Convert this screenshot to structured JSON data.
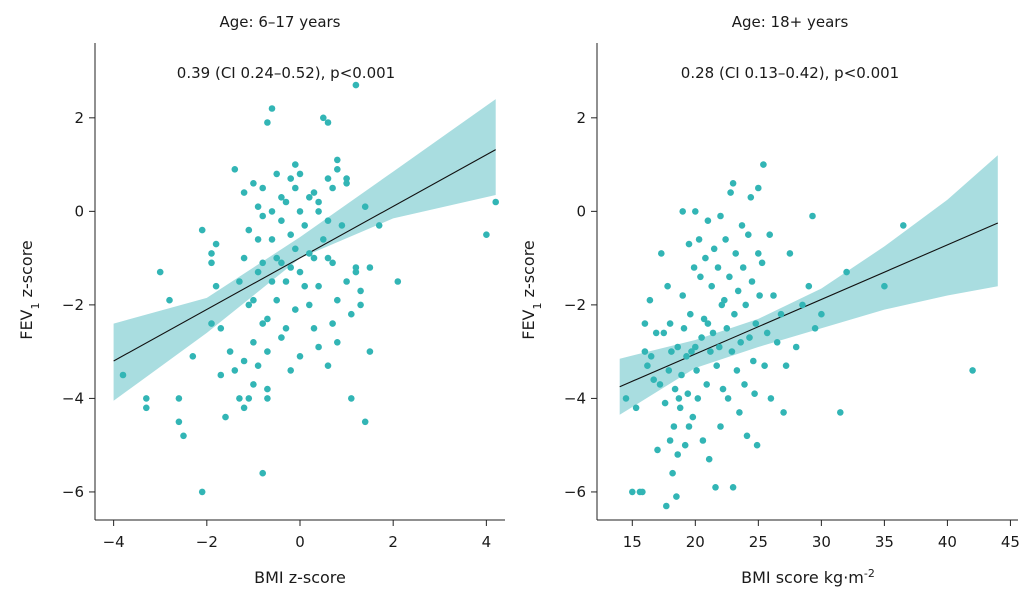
{
  "chart_data": [
    {
      "type": "scatter",
      "title": "Age: 6–17 years",
      "annotation": "0.39 (CI 0.24–0.52), p<0.001",
      "xlabel": "BMI z-score",
      "ylabel_main": "FEV",
      "ylabel_sub": "1",
      "ylabel_rest": " z-score",
      "xlim": [
        -4.4,
        4.4
      ],
      "ylim": [
        -6.6,
        3.6
      ],
      "xticks": [
        -4,
        -2,
        0,
        2,
        4
      ],
      "yticks": [
        -6,
        -4,
        -2,
        0,
        2
      ],
      "fit": {
        "x": [
          -4.0,
          4.2
        ],
        "y": [
          -3.2,
          1.32
        ]
      },
      "band": {
        "x": [
          -4.0,
          -2.0,
          0.0,
          2.0,
          4.2
        ],
        "lower": [
          -4.05,
          -2.6,
          -1.0,
          -0.15,
          0.35
        ],
        "upper": [
          -2.4,
          -1.85,
          -0.55,
          0.85,
          2.4
        ]
      },
      "points": [
        [
          -3.8,
          -3.5
        ],
        [
          -3.3,
          -4.0
        ],
        [
          -3.3,
          -4.2
        ],
        [
          -3.0,
          -1.3
        ],
        [
          -2.8,
          -1.9
        ],
        [
          -2.6,
          -4.0
        ],
        [
          -2.6,
          -4.5
        ],
        [
          -2.5,
          -4.8
        ],
        [
          -2.3,
          -3.1
        ],
        [
          -2.1,
          -6.0
        ],
        [
          -2.1,
          -0.4
        ],
        [
          -1.9,
          -0.9
        ],
        [
          -1.9,
          -1.1
        ],
        [
          -1.9,
          -2.4
        ],
        [
          -1.8,
          -0.7
        ],
        [
          -1.8,
          -1.6
        ],
        [
          -1.7,
          -3.5
        ],
        [
          -1.7,
          -2.5
        ],
        [
          -1.6,
          -4.4
        ],
        [
          -1.5,
          -3.0
        ],
        [
          -1.4,
          -3.4
        ],
        [
          -1.4,
          0.9
        ],
        [
          -1.3,
          -4.0
        ],
        [
          -1.3,
          -1.5
        ],
        [
          -1.2,
          -4.2
        ],
        [
          -1.2,
          -3.2
        ],
        [
          -1.2,
          -1.0
        ],
        [
          -1.2,
          0.4
        ],
        [
          -1.1,
          -4.0
        ],
        [
          -1.1,
          -2.0
        ],
        [
          -1.1,
          -0.4
        ],
        [
          -1.0,
          0.6
        ],
        [
          -1.0,
          -1.9
        ],
        [
          -1.0,
          -2.8
        ],
        [
          -1.0,
          -3.7
        ],
        [
          -0.9,
          -3.3
        ],
        [
          -0.9,
          -1.3
        ],
        [
          -0.9,
          -0.6
        ],
        [
          -0.9,
          0.1
        ],
        [
          -0.8,
          -5.6
        ],
        [
          -0.8,
          -2.4
        ],
        [
          -0.8,
          -1.1
        ],
        [
          -0.8,
          -0.1
        ],
        [
          -0.8,
          0.5
        ],
        [
          -0.7,
          1.9
        ],
        [
          -0.7,
          -2.3
        ],
        [
          -0.7,
          -3.0
        ],
        [
          -0.7,
          -3.8
        ],
        [
          -0.7,
          -4.0
        ],
        [
          -0.6,
          2.2
        ],
        [
          -0.6,
          -0.6
        ],
        [
          -0.6,
          -1.5
        ],
        [
          -0.6,
          0.0
        ],
        [
          -0.5,
          -1.0
        ],
        [
          -0.5,
          -1.9
        ],
        [
          -0.5,
          0.8
        ],
        [
          -0.4,
          -0.2
        ],
        [
          -0.4,
          -2.7
        ],
        [
          -0.4,
          -1.1
        ],
        [
          -0.4,
          0.3
        ],
        [
          -0.3,
          0.2
        ],
        [
          -0.3,
          -1.5
        ],
        [
          -0.3,
          -2.5
        ],
        [
          -0.2,
          -0.5
        ],
        [
          -0.2,
          0.7
        ],
        [
          -0.2,
          -1.2
        ],
        [
          -0.2,
          -3.4
        ],
        [
          -0.1,
          -0.8
        ],
        [
          -0.1,
          1.0
        ],
        [
          -0.1,
          0.5
        ],
        [
          -0.1,
          -2.1
        ],
        [
          0.0,
          -1.3
        ],
        [
          0.0,
          0.0
        ],
        [
          0.0,
          -3.1
        ],
        [
          0.0,
          0.8
        ],
        [
          0.1,
          -1.6
        ],
        [
          0.1,
          -0.3
        ],
        [
          0.2,
          -0.9
        ],
        [
          0.2,
          -2.0
        ],
        [
          0.2,
          0.3
        ],
        [
          0.3,
          -1.0
        ],
        [
          0.3,
          -2.5
        ],
        [
          0.3,
          0.4
        ],
        [
          0.4,
          0.0
        ],
        [
          0.4,
          -1.6
        ],
        [
          0.4,
          -2.9
        ],
        [
          0.4,
          0.2
        ],
        [
          0.5,
          -0.6
        ],
        [
          0.5,
          2.0
        ],
        [
          0.6,
          -1.0
        ],
        [
          0.6,
          0.7
        ],
        [
          0.6,
          1.9
        ],
        [
          0.6,
          -0.2
        ],
        [
          0.6,
          -3.3
        ],
        [
          0.7,
          -1.1
        ],
        [
          0.7,
          -2.4
        ],
        [
          0.7,
          0.5
        ],
        [
          0.8,
          1.1
        ],
        [
          0.8,
          -1.9
        ],
        [
          0.8,
          0.9
        ],
        [
          0.8,
          -2.8
        ],
        [
          0.9,
          -0.3
        ],
        [
          1.0,
          0.6
        ],
        [
          1.0,
          -1.5
        ],
        [
          1.0,
          0.7
        ],
        [
          1.1,
          -2.2
        ],
        [
          1.1,
          -4.0
        ],
        [
          1.2,
          2.7
        ],
        [
          1.2,
          -1.2
        ],
        [
          1.3,
          -1.7
        ],
        [
          1.3,
          -2.0
        ],
        [
          1.4,
          0.1
        ],
        [
          1.4,
          -4.5
        ],
        [
          1.5,
          -3.0
        ],
        [
          1.5,
          -1.2
        ],
        [
          1.7,
          -0.3
        ],
        [
          2.1,
          -1.5
        ],
        [
          4.0,
          -0.5
        ],
        [
          4.2,
          0.2
        ],
        [
          1.2,
          -1.3
        ]
      ]
    },
    {
      "type": "scatter",
      "title": "Age: 18+ years",
      "annotation": "0.28 (CI 0.13–0.42), p<0.001",
      "xlabel_main": "BMI score kg·m",
      "xlabel_sup": "-2",
      "ylabel_main": "FEV",
      "ylabel_sub": "1",
      "ylabel_rest": " z-score",
      "xlim": [
        12.2,
        45.6
      ],
      "ylim": [
        -6.6,
        3.6
      ],
      "xticks": [
        15,
        20,
        25,
        30,
        35,
        40,
        45
      ],
      "yticks": [
        -6,
        -4,
        -2,
        0,
        2
      ],
      "fit": {
        "x": [
          14.0,
          44.0
        ],
        "y": [
          -3.75,
          -0.25
        ]
      },
      "band": {
        "x": [
          14.0,
          20.0,
          25.0,
          30.0,
          35.0,
          40.0,
          44.0
        ],
        "lower": [
          -4.35,
          -3.35,
          -2.9,
          -2.5,
          -2.1,
          -1.8,
          -1.6
        ],
        "upper": [
          -3.15,
          -2.75,
          -2.3,
          -1.65,
          -0.75,
          0.25,
          1.2
        ]
      },
      "points": [
        [
          14.5,
          -4.0
        ],
        [
          15.0,
          -6.0
        ],
        [
          15.3,
          -4.2
        ],
        [
          15.6,
          -6.0
        ],
        [
          15.8,
          -6.0
        ],
        [
          16.0,
          -2.4
        ],
        [
          16.0,
          -3.0
        ],
        [
          16.2,
          -3.3
        ],
        [
          16.4,
          -1.9
        ],
        [
          16.5,
          -3.1
        ],
        [
          16.7,
          -3.6
        ],
        [
          16.9,
          -2.6
        ],
        [
          17.0,
          -5.1
        ],
        [
          17.2,
          -3.7
        ],
        [
          17.3,
          -0.9
        ],
        [
          17.5,
          -2.6
        ],
        [
          17.6,
          -4.1
        ],
        [
          17.7,
          -6.3
        ],
        [
          17.8,
          -1.6
        ],
        [
          17.9,
          -3.4
        ],
        [
          18.0,
          -2.4
        ],
        [
          18.0,
          -4.9
        ],
        [
          18.1,
          -3.0
        ],
        [
          18.2,
          -5.6
        ],
        [
          18.3,
          -4.6
        ],
        [
          18.4,
          -3.8
        ],
        [
          18.5,
          -6.1
        ],
        [
          18.6,
          -2.9
        ],
        [
          18.6,
          -5.2
        ],
        [
          18.7,
          -4.0
        ],
        [
          18.8,
          -4.2
        ],
        [
          18.9,
          -3.5
        ],
        [
          19.0,
          0.0
        ],
        [
          19.0,
          -1.8
        ],
        [
          19.1,
          -2.5
        ],
        [
          19.2,
          -5.0
        ],
        [
          19.3,
          -3.1
        ],
        [
          19.4,
          -3.9
        ],
        [
          19.5,
          -0.7
        ],
        [
          19.5,
          -4.6
        ],
        [
          19.6,
          -2.2
        ],
        [
          19.7,
          -3.0
        ],
        [
          19.8,
          -4.4
        ],
        [
          19.9,
          -1.2
        ],
        [
          20.0,
          0.0
        ],
        [
          20.0,
          -2.9
        ],
        [
          20.1,
          -3.4
        ],
        [
          20.2,
          -4.0
        ],
        [
          20.3,
          -0.6
        ],
        [
          20.4,
          -1.4
        ],
        [
          20.5,
          -2.7
        ],
        [
          20.6,
          -4.9
        ],
        [
          20.7,
          -2.3
        ],
        [
          20.8,
          -1.0
        ],
        [
          20.9,
          -3.7
        ],
        [
          21.0,
          -2.4
        ],
        [
          21.0,
          -0.2
        ],
        [
          21.1,
          -5.3
        ],
        [
          21.2,
          -3.0
        ],
        [
          21.3,
          -1.6
        ],
        [
          21.4,
          -2.6
        ],
        [
          21.5,
          -0.8
        ],
        [
          21.6,
          -5.9
        ],
        [
          21.7,
          -3.3
        ],
        [
          21.8,
          -1.2
        ],
        [
          21.9,
          -2.9
        ],
        [
          22.0,
          -0.1
        ],
        [
          22.0,
          -4.6
        ],
        [
          22.1,
          -2.0
        ],
        [
          22.2,
          -3.8
        ],
        [
          22.3,
          -1.9
        ],
        [
          22.4,
          -0.6
        ],
        [
          22.5,
          -2.5
        ],
        [
          22.6,
          -4.0
        ],
        [
          22.7,
          -1.4
        ],
        [
          22.8,
          0.4
        ],
        [
          22.9,
          -3.0
        ],
        [
          23.0,
          0.6
        ],
        [
          23.0,
          -5.9
        ],
        [
          23.1,
          -2.2
        ],
        [
          23.2,
          -0.9
        ],
        [
          23.3,
          -3.4
        ],
        [
          23.4,
          -1.7
        ],
        [
          23.5,
          -4.3
        ],
        [
          23.6,
          -2.8
        ],
        [
          23.7,
          -0.3
        ],
        [
          23.8,
          -1.2
        ],
        [
          23.9,
          -3.7
        ],
        [
          24.0,
          -2.0
        ],
        [
          24.1,
          -4.8
        ],
        [
          24.2,
          -0.5
        ],
        [
          24.3,
          -2.7
        ],
        [
          24.4,
          0.3
        ],
        [
          24.5,
          -1.5
        ],
        [
          24.6,
          -3.2
        ],
        [
          24.7,
          -3.9
        ],
        [
          24.8,
          -2.4
        ],
        [
          24.9,
          -5.0
        ],
        [
          25.0,
          -0.9
        ],
        [
          25.0,
          0.5
        ],
        [
          25.1,
          -1.8
        ],
        [
          25.3,
          -1.1
        ],
        [
          25.4,
          1.0
        ],
        [
          25.5,
          -3.3
        ],
        [
          25.7,
          -2.6
        ],
        [
          25.9,
          -0.5
        ],
        [
          26.0,
          -4.0
        ],
        [
          26.2,
          -1.8
        ],
        [
          26.5,
          -2.8
        ],
        [
          26.8,
          -2.2
        ],
        [
          27.0,
          -4.3
        ],
        [
          27.2,
          -3.3
        ],
        [
          27.5,
          -0.9
        ],
        [
          28.0,
          -2.9
        ],
        [
          28.5,
          -2.0
        ],
        [
          29.0,
          -1.6
        ],
        [
          29.3,
          -0.1
        ],
        [
          29.5,
          -2.5
        ],
        [
          30.0,
          -2.2
        ],
        [
          31.5,
          -4.3
        ],
        [
          32.0,
          -1.3
        ],
        [
          35.0,
          -1.6
        ],
        [
          36.5,
          -0.3
        ],
        [
          42.0,
          -3.4
        ]
      ]
    }
  ]
}
